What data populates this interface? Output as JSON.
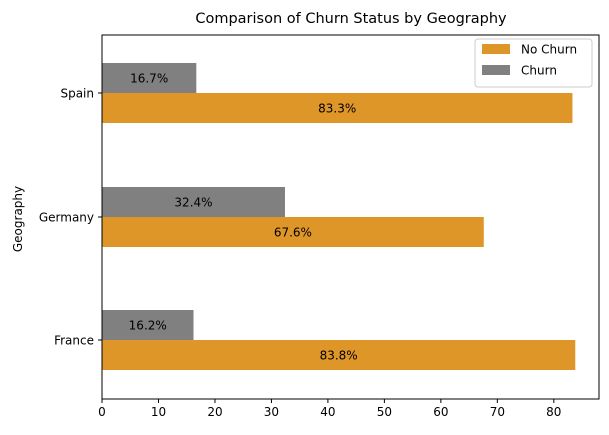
{
  "chart_data": {
    "type": "bar",
    "orientation": "horizontal",
    "title": "Comparison of Churn Status by Geography",
    "xlabel": "",
    "ylabel": "Geography",
    "categories": [
      "France",
      "Germany",
      "Spain"
    ],
    "series": [
      {
        "name": "No Churn",
        "color": "#df9628",
        "values": [
          83.8,
          67.6,
          83.3
        ],
        "labels": [
          "83.8%",
          "67.6%",
          "83.3%"
        ]
      },
      {
        "name": "Churn",
        "color": "#808080",
        "values": [
          16.2,
          32.4,
          16.7
        ],
        "labels": [
          "16.2%",
          "32.4%",
          "16.7%"
        ]
      }
    ],
    "xlim": [
      0,
      88
    ],
    "xticks": [
      0,
      10,
      20,
      30,
      40,
      50,
      60,
      70,
      80
    ],
    "grid": false,
    "legend_position": "top-right"
  }
}
